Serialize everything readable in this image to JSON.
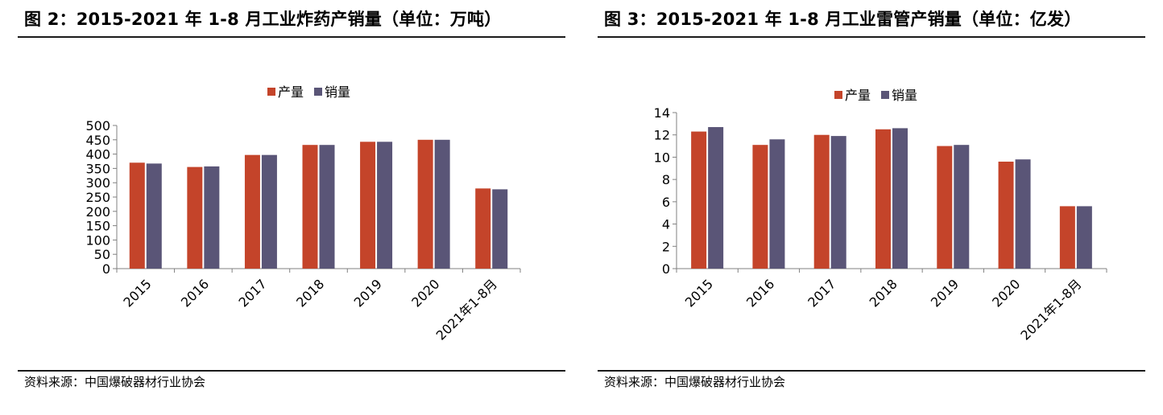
{
  "colors": {
    "series1": "#c4442a",
    "series2": "#5a5577",
    "axis": "#808080"
  },
  "panels": [
    {
      "title": "图 2：2015-2021 年 1-8 月工业炸药产销量（单位：万吨）",
      "source": "资料来源：中国爆破器材行业协会"
    },
    {
      "title": "图 3：2015-2021 年 1-8 月工业雷管产销量（单位：亿发）",
      "source": "资料来源：中国爆破器材行业协会"
    }
  ],
  "chart_data": [
    {
      "type": "bar",
      "categories": [
        "2015",
        "2016",
        "2017",
        "2018",
        "2019",
        "2020",
        "2021年1-8月"
      ],
      "series": [
        {
          "name": "产量",
          "values": [
            370,
            355,
            397,
            432,
            443,
            450,
            280
          ]
        },
        {
          "name": "销量",
          "values": [
            367,
            357,
            397,
            432,
            443,
            450,
            277
          ]
        }
      ],
      "yticks": [
        "0",
        "50",
        "100",
        "150",
        "200",
        "250",
        "300",
        "350",
        "400",
        "450",
        "500"
      ],
      "ylim": [
        0,
        500
      ],
      "legend": "top-center",
      "grid": false
    },
    {
      "type": "bar",
      "categories": [
        "2015",
        "2016",
        "2017",
        "2018",
        "2019",
        "2020",
        "2021年1-8月"
      ],
      "series": [
        {
          "name": "产量",
          "values": [
            12.3,
            11.1,
            12.0,
            12.5,
            11.0,
            9.6,
            5.6
          ]
        },
        {
          "name": "销量",
          "values": [
            12.7,
            11.6,
            11.9,
            12.6,
            11.1,
            9.8,
            5.6
          ]
        }
      ],
      "yticks": [
        "0",
        "2",
        "4",
        "6",
        "8",
        "10",
        "12",
        "14"
      ],
      "ylim": [
        0,
        14
      ],
      "legend": "top-center",
      "grid": false
    }
  ]
}
